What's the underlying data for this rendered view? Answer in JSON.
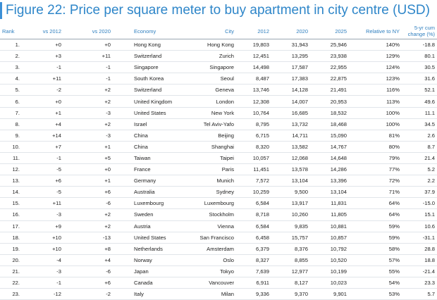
{
  "title": "Figure 22: Price per square meter to buy apartment in city centre (USD)",
  "headers": [
    "Rank",
    "vs 2012",
    "vs 2020",
    "Economy",
    "City",
    "2012",
    "2020",
    "2025",
    "Relative to NY",
    "5-yr cum change (%)"
  ],
  "rows": [
    [
      "1.",
      "+0",
      "+0",
      "Hong Kong",
      "Hong Kong",
      "19,803",
      "31,943",
      "25,946",
      "140%",
      "-18.8"
    ],
    [
      "2.",
      "+3",
      "+11",
      "Switzerland",
      "Zurich",
      "12,451",
      "13,295",
      "23,938",
      "129%",
      "80.1"
    ],
    [
      "3.",
      "-1",
      "-1",
      "Singapore",
      "Singapore",
      "14,498",
      "17,587",
      "22,955",
      "124%",
      "30.5"
    ],
    [
      "4.",
      "+11",
      "-1",
      "South Korea",
      "Seoul",
      "8,487",
      "17,383",
      "22,875",
      "123%",
      "31.6"
    ],
    [
      "5.",
      "-2",
      "+2",
      "Switzerland",
      "Geneva",
      "13,746",
      "14,128",
      "21,491",
      "116%",
      "52.1"
    ],
    [
      "6.",
      "+0",
      "+2",
      "United Kingdom",
      "London",
      "12,308",
      "14,007",
      "20,953",
      "113%",
      "49.6"
    ],
    [
      "7.",
      "+1",
      "-3",
      "United States",
      "New York",
      "10,764",
      "16,685",
      "18,532",
      "100%",
      "11.1"
    ],
    [
      "8.",
      "+4",
      "+2",
      "Israel",
      "Tel Aviv-Yafo",
      "8,795",
      "13,732",
      "18,468",
      "100%",
      "34.5"
    ],
    [
      "9.",
      "+14",
      "-3",
      "China",
      "Beijing",
      "6,715",
      "14,711",
      "15,090",
      "81%",
      "2.6"
    ],
    [
      "10.",
      "+7",
      "+1",
      "China",
      "Shanghai",
      "8,320",
      "13,582",
      "14,767",
      "80%",
      "8.7"
    ],
    [
      "11.",
      "-1",
      "+5",
      "Taiwan",
      "Taipei",
      "10,057",
      "12,068",
      "14,648",
      "79%",
      "21.4"
    ],
    [
      "12.",
      "-5",
      "+0",
      "France",
      "Paris",
      "11,451",
      "13,578",
      "14,286",
      "77%",
      "5.2"
    ],
    [
      "13.",
      "+6",
      "+1",
      "Germany",
      "Munich",
      "7,572",
      "13,104",
      "13,396",
      "72%",
      "2.2"
    ],
    [
      "14.",
      "-5",
      "+6",
      "Australia",
      "Sydney",
      "10,259",
      "9,500",
      "13,104",
      "71%",
      "37.9"
    ],
    [
      "15.",
      "+11",
      "-6",
      "Luxembourg",
      "Luxembourg",
      "6,584",
      "13,917",
      "11,831",
      "64%",
      "-15.0"
    ],
    [
      "16.",
      "-3",
      "+2",
      "Sweden",
      "Stockholm",
      "8,718",
      "10,260",
      "11,805",
      "64%",
      "15.1"
    ],
    [
      "17.",
      "+9",
      "+2",
      "Austria",
      "Vienna",
      "6,584",
      "9,835",
      "10,881",
      "59%",
      "10.6"
    ],
    [
      "18.",
      "+10",
      "-13",
      "United States",
      "San Francisco",
      "6,458",
      "15,757",
      "10,857",
      "59%",
      "-31.1"
    ],
    [
      "19.",
      "+10",
      "+8",
      "Netherlands",
      "Amsterdam",
      "6,379",
      "8,376",
      "10,792",
      "58%",
      "28.8"
    ],
    [
      "20.",
      "-4",
      "+4",
      "Norway",
      "Oslo",
      "8,327",
      "8,855",
      "10,520",
      "57%",
      "18.8"
    ],
    [
      "21.",
      "-3",
      "-6",
      "Japan",
      "Tokyo",
      "7,639",
      "12,977",
      "10,199",
      "55%",
      "-21.4"
    ],
    [
      "22.",
      "-1",
      "+6",
      "Canada",
      "Vancouver",
      "6,911",
      "8,127",
      "10,023",
      "54%",
      "23.3"
    ],
    [
      "23.",
      "-12",
      "-2",
      "Italy",
      "Milan",
      "9,336",
      "9,370",
      "9,901",
      "53%",
      "5.7"
    ]
  ],
  "colors": {
    "title": "#2e86c9",
    "header": "#2f7fbf",
    "accent_bar": "#3b8fd6"
  }
}
